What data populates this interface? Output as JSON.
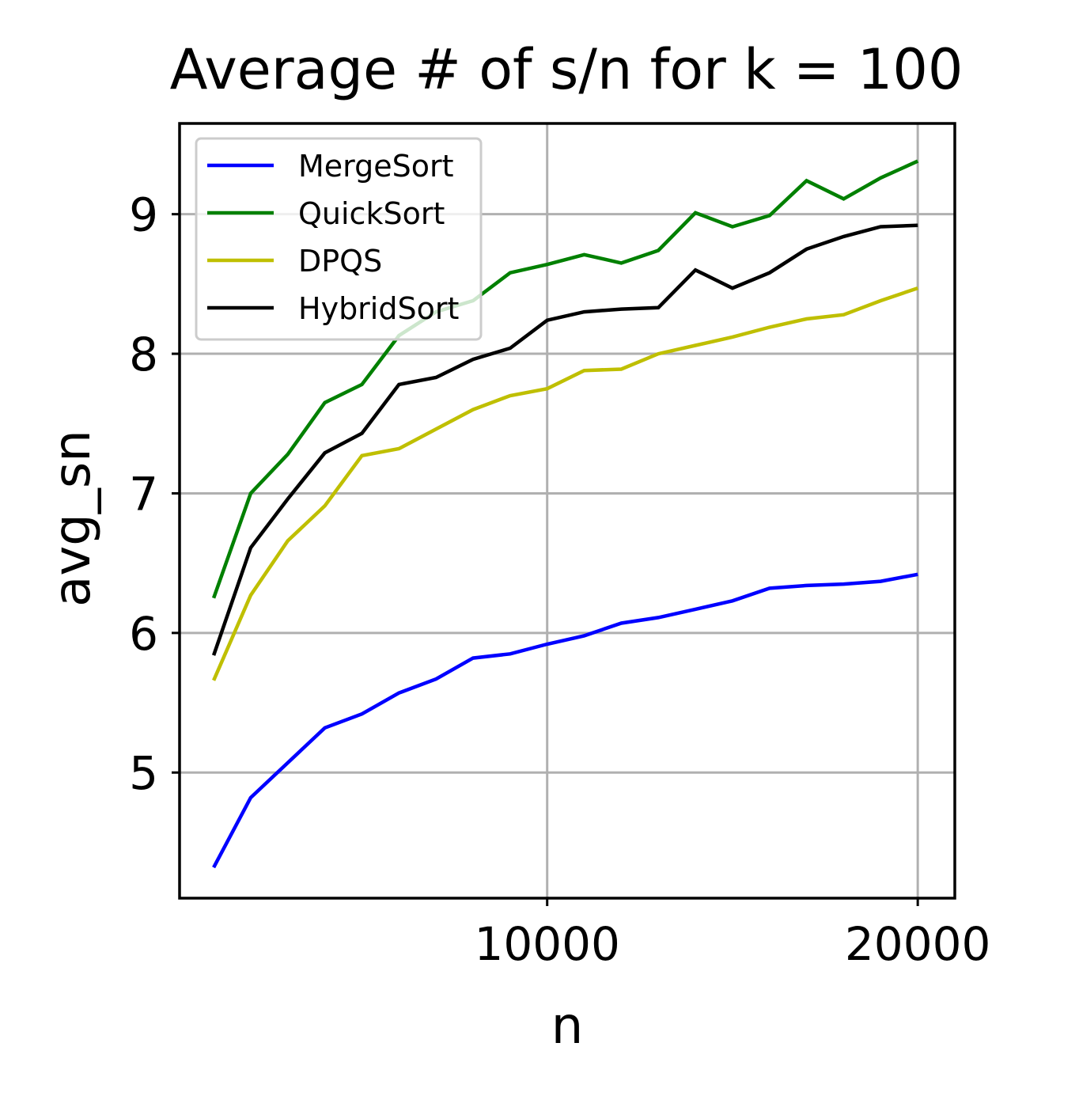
{
  "chart_data": {
    "type": "line",
    "title": "Average # of s/n for k = 100",
    "xlabel": "n",
    "ylabel": "avg_sn",
    "xlim": [
      80,
      21000
    ],
    "ylim": [
      4.1,
      9.65
    ],
    "xticks": [
      10000,
      20000
    ],
    "xtick_labels": [
      "10000",
      "20000"
    ],
    "yticks": [
      5,
      6,
      7,
      8,
      9
    ],
    "ytick_labels": [
      "5",
      "6",
      "7",
      "8",
      "9"
    ],
    "grid": true,
    "legend_position": "top-left",
    "x": [
      1000,
      2000,
      3000,
      4000,
      5000,
      6000,
      7000,
      8000,
      9000,
      10000,
      11000,
      12000,
      13000,
      14000,
      15000,
      16000,
      17000,
      18000,
      19000,
      20000
    ],
    "series": [
      {
        "name": "MergeSort",
        "color": "#0000ff",
        "values": [
          4.32,
          4.82,
          5.07,
          5.32,
          5.42,
          5.57,
          5.67,
          5.82,
          5.85,
          5.92,
          5.98,
          6.07,
          6.11,
          6.17,
          6.23,
          6.32,
          6.34,
          6.35,
          6.37,
          6.42
        ]
      },
      {
        "name": "QuickSort",
        "color": "#008000",
        "values": [
          6.25,
          7.0,
          7.28,
          7.65,
          7.78,
          8.13,
          8.3,
          8.38,
          8.58,
          8.64,
          8.71,
          8.65,
          8.74,
          9.01,
          8.91,
          8.99,
          9.24,
          9.11,
          9.26,
          9.38
        ]
      },
      {
        "name": "DPQS",
        "color": "#bfbf00",
        "values": [
          5.66,
          6.27,
          6.66,
          6.91,
          7.27,
          7.32,
          7.46,
          7.6,
          7.7,
          7.75,
          7.88,
          7.89,
          8.0,
          8.06,
          8.12,
          8.19,
          8.25,
          8.28,
          8.38,
          8.47
        ]
      },
      {
        "name": "HybridSort",
        "color": "#000000",
        "values": [
          5.84,
          6.61,
          6.96,
          7.29,
          7.43,
          7.78,
          7.83,
          7.96,
          8.04,
          8.24,
          8.3,
          8.32,
          8.33,
          8.6,
          8.47,
          8.58,
          8.75,
          8.84,
          8.91,
          8.92
        ]
      }
    ]
  }
}
